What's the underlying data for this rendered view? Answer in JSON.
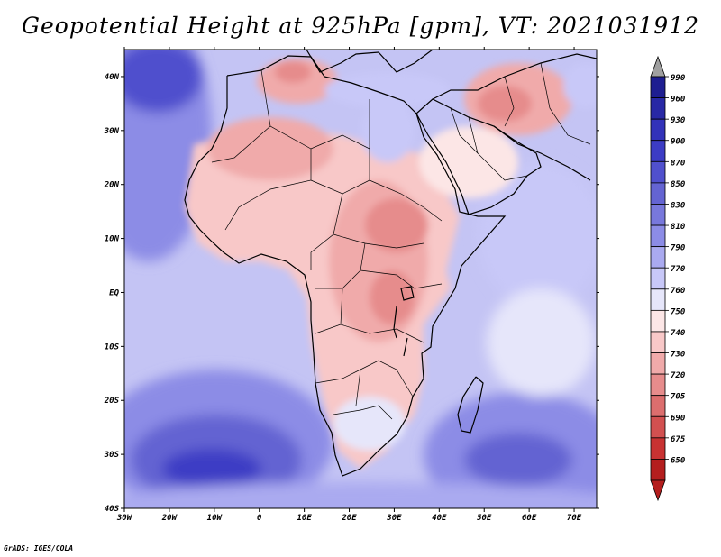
{
  "title": "Geopotential Height at 925hPa [gpm], VT: 2021031912",
  "credit": "GrADS: IGES/COLA",
  "map": {
    "region": "Africa and Middle East",
    "lon_range": [
      -30,
      75
    ],
    "lat_range": [
      -40,
      45
    ],
    "lon_ticks": [
      {
        "value": -30,
        "label": "30W"
      },
      {
        "value": -20,
        "label": "20W"
      },
      {
        "value": -10,
        "label": "10W"
      },
      {
        "value": 0,
        "label": "0"
      },
      {
        "value": 10,
        "label": "10E"
      },
      {
        "value": 20,
        "label": "20E"
      },
      {
        "value": 30,
        "label": "30E"
      },
      {
        "value": 40,
        "label": "40E"
      },
      {
        "value": 50,
        "label": "50E"
      },
      {
        "value": 60,
        "label": "60E"
      },
      {
        "value": 70,
        "label": "70E"
      }
    ],
    "lat_ticks": [
      {
        "value": 40,
        "label": "40N"
      },
      {
        "value": 30,
        "label": "30N"
      },
      {
        "value": 20,
        "label": "20N"
      },
      {
        "value": 10,
        "label": "10N"
      },
      {
        "value": 0,
        "label": "EQ"
      },
      {
        "value": -10,
        "label": "10S"
      },
      {
        "value": -20,
        "label": "20S"
      },
      {
        "value": -30,
        "label": "30S"
      },
      {
        "value": -40,
        "label": "40S"
      }
    ]
  },
  "colorbar": {
    "levels_top_to_bottom": [
      "990",
      "960",
      "930",
      "900",
      "870",
      "850",
      "830",
      "810",
      "790",
      "770",
      "760",
      "750",
      "740",
      "730",
      "720",
      "705",
      "690",
      "675",
      "650"
    ],
    "colors_top_to_bottom": [
      "#1e1e91",
      "#2828a5",
      "#3232b9",
      "#3c3cc5",
      "#5050cd",
      "#6464d2",
      "#7878dc",
      "#8c8ce6",
      "#aaaaf0",
      "#c8c8f8",
      "#e6e6fa",
      "#fce6e6",
      "#f8c8c8",
      "#f0aaaa",
      "#e68c8c",
      "#dc6e6e",
      "#d25050",
      "#c83232",
      "#b41e1e"
    ],
    "over_color": "#a0a0a0",
    "under_color": "#b41e1e"
  }
}
